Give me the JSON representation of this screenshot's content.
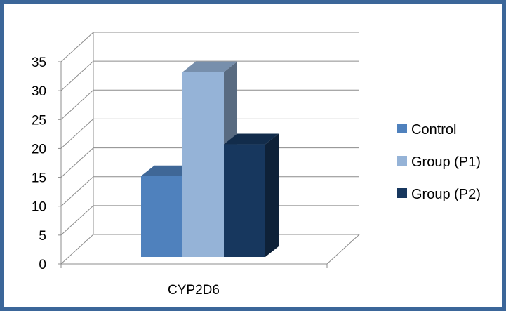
{
  "chart_data": {
    "type": "bar",
    "style": "3d-clustered-column",
    "categories": [
      "CYP2D6"
    ],
    "series": [
      {
        "name": "Control",
        "values": [
          14
        ],
        "color": "#4f81bd"
      },
      {
        "name": "Group (P1)",
        "values": [
          32
        ],
        "color": "#95b3d7"
      },
      {
        "name": "Group (P2)",
        "values": [
          19.5
        ],
        "color": "#17375e"
      }
    ],
    "title": "",
    "xlabel": "",
    "ylabel": "",
    "ylim": [
      0,
      35
    ],
    "yticks": [
      0,
      5,
      10,
      15,
      20,
      25,
      30,
      35
    ],
    "grid": true,
    "legend_position": "right",
    "frame_color": "#3b6699"
  }
}
